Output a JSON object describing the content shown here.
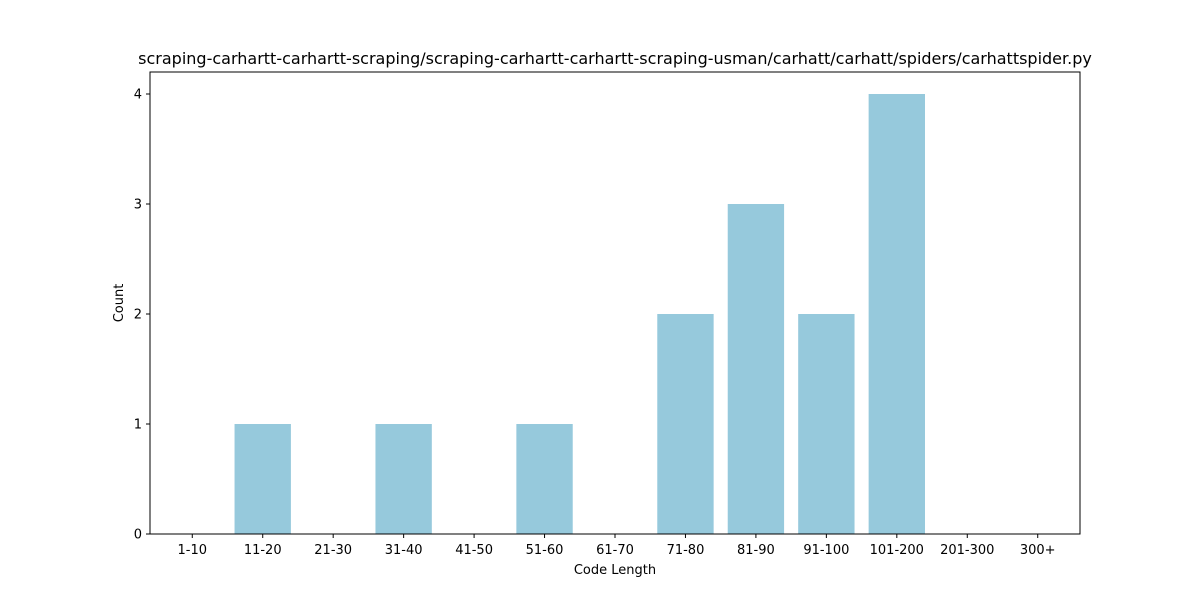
{
  "chart_data": {
    "type": "bar",
    "title": "scraping-carhartt-carhartt-scraping/scraping-carhartt-carhartt-scraping-usman/carhatt/carhatt/spiders/carhattspider.py",
    "xlabel": "Code Length",
    "ylabel": "Count",
    "categories": [
      "1-10",
      "11-20",
      "21-30",
      "31-40",
      "41-50",
      "51-60",
      "61-70",
      "71-80",
      "81-90",
      "91-100",
      "101-200",
      "201-300",
      "300+"
    ],
    "values": [
      0,
      1,
      0,
      1,
      0,
      1,
      0,
      2,
      3,
      2,
      4,
      0,
      0
    ],
    "ylim": [
      0,
      4.2
    ],
    "yticks": [
      0,
      1,
      2,
      3,
      4
    ],
    "bar_color": "#96c9dc",
    "grid": false,
    "legend": "none"
  }
}
